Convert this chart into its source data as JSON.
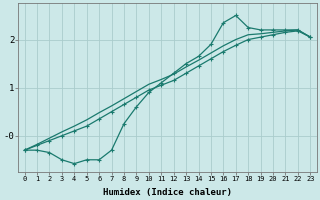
{
  "xlabel": "Humidex (Indice chaleur)",
  "ylabel": "",
  "background_color": "#cce8e8",
  "grid_color": "#aacccc",
  "line_color": "#1a7a6e",
  "marker": "+",
  "x_values": [
    0,
    1,
    2,
    3,
    4,
    5,
    6,
    7,
    8,
    9,
    10,
    11,
    12,
    13,
    14,
    15,
    16,
    17,
    18,
    19,
    20,
    21,
    22,
    23
  ],
  "line_straight1_y": [
    -0.3,
    -0.2,
    -0.1,
    0.0,
    0.1,
    0.2,
    0.35,
    0.5,
    0.65,
    0.8,
    0.95,
    1.05,
    1.15,
    1.3,
    1.45,
    1.6,
    1.75,
    1.88,
    2.0,
    2.05,
    2.1,
    2.15,
    2.18,
    2.05
  ],
  "line_straight2_y": [
    -0.3,
    -0.18,
    -0.05,
    0.08,
    0.2,
    0.33,
    0.48,
    0.62,
    0.77,
    0.92,
    1.07,
    1.17,
    1.28,
    1.43,
    1.57,
    1.72,
    1.87,
    2.0,
    2.1,
    2.12,
    2.15,
    2.18,
    2.2,
    2.05
  ],
  "line_jagged_y": [
    -0.3,
    -0.3,
    -0.35,
    -0.5,
    -0.58,
    -0.5,
    -0.5,
    -0.3,
    0.25,
    0.6,
    0.9,
    1.1,
    1.3,
    1.5,
    1.65,
    1.9,
    2.35,
    2.5,
    2.25,
    2.2,
    2.2,
    2.2,
    2.2,
    2.05
  ],
  "ylim": [
    -0.75,
    2.75
  ],
  "xlim": [
    -0.5,
    23.5
  ],
  "xticks": [
    0,
    1,
    2,
    3,
    4,
    5,
    6,
    7,
    8,
    9,
    10,
    11,
    12,
    13,
    14,
    15,
    16,
    17,
    18,
    19,
    20,
    21,
    22,
    23
  ],
  "yticks": [
    0,
    1,
    2
  ],
  "ytick_labels": [
    "-0",
    "1",
    "2"
  ]
}
